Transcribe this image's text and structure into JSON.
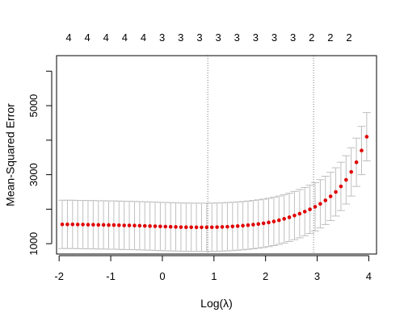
{
  "chart_data": {
    "type": "scatter",
    "subtype": "cv.glmnet cross-validation curve with error bars",
    "xlabel": "Log(λ)",
    "ylabel": "Mean-Squared Error",
    "xlim": [
      -2.05,
      4.15
    ],
    "ylim": [
      700,
      6450
    ],
    "x_ticks": [
      -2,
      -1,
      0,
      1,
      2,
      3,
      4
    ],
    "x_tick_labels": [
      "-2",
      "-1",
      "0",
      "1",
      "2",
      "3",
      "4"
    ],
    "y_ticks": [
      1000,
      2000,
      3000,
      4000,
      5000,
      6000
    ],
    "y_tick_labels": [
      "1000",
      "",
      "3000",
      "",
      "5000",
      ""
    ],
    "top_axis_labels": [
      "4",
      "4",
      "4",
      "4",
      "4",
      "3",
      "3",
      "3",
      "3",
      "3",
      "3",
      "3",
      "3",
      "2",
      "2",
      "2"
    ],
    "vlines": [
      0.88,
      2.93
    ],
    "colors": {
      "points": "#e00000",
      "errorbars": "#bfbfbf",
      "axis": "#000000",
      "vline": "#555555"
    },
    "grid": false,
    "legend": "none",
    "series": [
      {
        "x": [
          -1.94,
          -1.84,
          -1.74,
          -1.64,
          -1.54,
          -1.44,
          -1.34,
          -1.24,
          -1.14,
          -1.04,
          -0.94,
          -0.84,
          -0.74,
          -0.64,
          -0.54,
          -0.44,
          -0.34,
          -0.24,
          -0.14,
          -0.04,
          0.06,
          0.16,
          0.26,
          0.36,
          0.46,
          0.56,
          0.66,
          0.76,
          0.86,
          0.96,
          1.06,
          1.16,
          1.26,
          1.36,
          1.46,
          1.56,
          1.66,
          1.76,
          1.86,
          1.96,
          2.06,
          2.16,
          2.26,
          2.36,
          2.46,
          2.56,
          2.66,
          2.76,
          2.86,
          2.96,
          3.06,
          3.16,
          3.26,
          3.36,
          3.46,
          3.56,
          3.66,
          3.76,
          3.86,
          3.96
        ],
        "y": [
          1560,
          1560,
          1560,
          1555,
          1555,
          1550,
          1550,
          1545,
          1545,
          1540,
          1540,
          1535,
          1530,
          1530,
          1525,
          1520,
          1515,
          1510,
          1505,
          1500,
          1495,
          1490,
          1485,
          1480,
          1478,
          1476,
          1475,
          1474,
          1475,
          1477,
          1480,
          1485,
          1492,
          1500,
          1510,
          1522,
          1536,
          1552,
          1570,
          1590,
          1615,
          1645,
          1680,
          1720,
          1765,
          1815,
          1870,
          1930,
          1995,
          2070,
          2155,
          2255,
          2370,
          2500,
          2660,
          2850,
          3080,
          3360,
          3700,
          4100
        ],
        "err": [
          700,
          700,
          700,
          700,
          700,
          700,
          700,
          700,
          700,
          700,
          700,
          700,
          700,
          700,
          700,
          700,
          700,
          700,
          700,
          700,
          700,
          700,
          700,
          700,
          700,
          700,
          700,
          700,
          700,
          700,
          700,
          700,
          700,
          700,
          700,
          700,
          700,
          700,
          700,
          700,
          700,
          700,
          700,
          700,
          700,
          700,
          700,
          700,
          700,
          700,
          700,
          700,
          700,
          700,
          700,
          700,
          700,
          700,
          700,
          700
        ]
      }
    ]
  }
}
